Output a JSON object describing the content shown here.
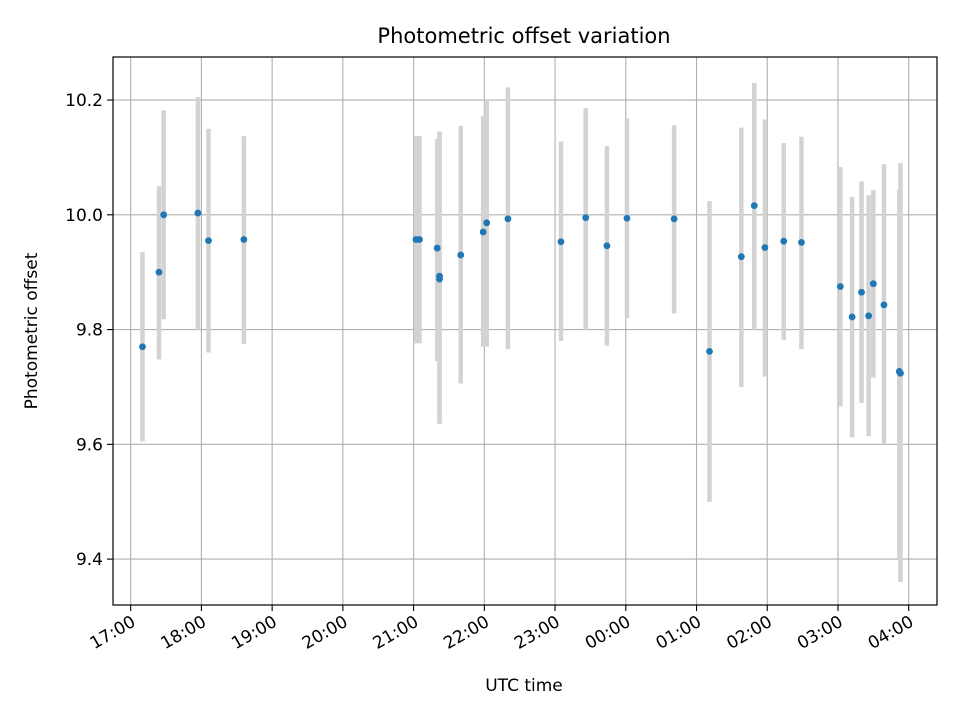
{
  "chart_data": {
    "type": "scatter",
    "title": "Photometric offset variation",
    "xlabel": "UTC time",
    "ylabel": "Photometric offset",
    "x_unit": "time",
    "xlim": [
      "16:45",
      "04:24"
    ],
    "ylim": [
      9.32,
      10.275
    ],
    "grid": true,
    "xticks": [
      "17:00",
      "18:00",
      "19:00",
      "20:00",
      "21:00",
      "22:00",
      "23:00",
      "00:00",
      "01:00",
      "02:00",
      "03:00",
      "04:00"
    ],
    "yticks": [
      9.4,
      9.6,
      9.8,
      10.0,
      10.2
    ],
    "ytick_labels": [
      "9.4",
      "9.6",
      "9.8",
      "10.0",
      "10.2"
    ],
    "colors": {
      "points": "#1f77b4",
      "errorbars": "#d3d3d3",
      "grid": "#b0b0b0"
    },
    "series": [
      {
        "points": [
          {
            "x": "17:10",
            "y": 9.77,
            "ylo": 9.605,
            "yhi": 9.935
          },
          {
            "x": "17:24",
            "y": 9.9,
            "ylo": 9.748,
            "yhi": 10.05
          },
          {
            "x": "17:28",
            "y": 10.0,
            "ylo": 9.818,
            "yhi": 10.182
          },
          {
            "x": "17:57",
            "y": 10.003,
            "ylo": 9.8,
            "yhi": 10.205
          },
          {
            "x": "18:06",
            "y": 9.955,
            "ylo": 9.76,
            "yhi": 10.15
          },
          {
            "x": "18:36",
            "y": 9.957,
            "ylo": 9.775,
            "yhi": 10.137
          },
          {
            "x": "21:02",
            "y": 9.957,
            "ylo": 9.776,
            "yhi": 10.137
          },
          {
            "x": "21:05",
            "y": 9.957,
            "ylo": 9.776,
            "yhi": 10.137
          },
          {
            "x": "21:20",
            "y": 9.942,
            "ylo": 9.745,
            "yhi": 10.132
          },
          {
            "x": "21:22",
            "y": 9.893,
            "ylo": 9.64,
            "yhi": 10.145
          },
          {
            "x": "21:22",
            "y": 9.888,
            "ylo": 9.635,
            "yhi": 10.145
          },
          {
            "x": "21:40",
            "y": 9.93,
            "ylo": 9.706,
            "yhi": 10.155
          },
          {
            "x": "21:59",
            "y": 9.97,
            "ylo": 9.77,
            "yhi": 10.172
          },
          {
            "x": "22:02",
            "y": 9.986,
            "ylo": 9.77,
            "yhi": 10.2
          },
          {
            "x": "22:20",
            "y": 9.993,
            "ylo": 9.766,
            "yhi": 10.222
          },
          {
            "x": "23:05",
            "y": 9.953,
            "ylo": 9.78,
            "yhi": 10.128
          },
          {
            "x": "23:26",
            "y": 9.995,
            "ylo": 9.8,
            "yhi": 10.186
          },
          {
            "x": "23:44",
            "y": 9.946,
            "ylo": 9.772,
            "yhi": 10.12
          },
          {
            "x": "00:01",
            "y": 9.994,
            "ylo": 9.82,
            "yhi": 10.168
          },
          {
            "x": "00:41",
            "y": 9.993,
            "ylo": 9.828,
            "yhi": 10.156
          },
          {
            "x": "01:11",
            "y": 9.762,
            "ylo": 9.5,
            "yhi": 10.024
          },
          {
            "x": "01:38",
            "y": 9.927,
            "ylo": 9.7,
            "yhi": 10.152
          },
          {
            "x": "01:49",
            "y": 10.016,
            "ylo": 9.8,
            "yhi": 10.23
          },
          {
            "x": "01:58",
            "y": 9.943,
            "ylo": 9.718,
            "yhi": 10.166
          },
          {
            "x": "02:14",
            "y": 9.954,
            "ylo": 9.782,
            "yhi": 10.125
          },
          {
            "x": "02:29",
            "y": 9.952,
            "ylo": 9.766,
            "yhi": 10.136
          },
          {
            "x": "03:02",
            "y": 9.875,
            "ylo": 9.666,
            "yhi": 10.083
          },
          {
            "x": "03:12",
            "y": 9.822,
            "ylo": 9.612,
            "yhi": 10.031
          },
          {
            "x": "03:20",
            "y": 9.865,
            "ylo": 9.672,
            "yhi": 10.058
          },
          {
            "x": "03:26",
            "y": 9.824,
            "ylo": 9.614,
            "yhi": 10.034
          },
          {
            "x": "03:30",
            "y": 9.88,
            "ylo": 9.716,
            "yhi": 10.043
          },
          {
            "x": "03:39",
            "y": 9.843,
            "ylo": 9.6,
            "yhi": 10.088
          },
          {
            "x": "03:52",
            "y": 9.727,
            "ylo": 9.4,
            "yhi": 10.044
          },
          {
            "x": "03:53",
            "y": 9.724,
            "ylo": 9.36,
            "yhi": 10.09
          }
        ]
      }
    ]
  }
}
